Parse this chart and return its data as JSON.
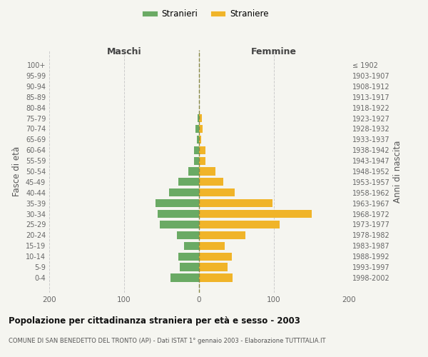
{
  "age_groups": [
    "100+",
    "95-99",
    "90-94",
    "85-89",
    "80-84",
    "75-79",
    "70-74",
    "65-69",
    "60-64",
    "55-59",
    "50-54",
    "45-49",
    "40-44",
    "35-39",
    "30-34",
    "25-29",
    "20-24",
    "15-19",
    "10-14",
    "5-9",
    "0-4"
  ],
  "birth_years": [
    "≤ 1902",
    "1903-1907",
    "1908-1912",
    "1913-1917",
    "1918-1922",
    "1923-1927",
    "1928-1932",
    "1933-1937",
    "1938-1942",
    "1943-1947",
    "1948-1952",
    "1953-1957",
    "1958-1962",
    "1963-1967",
    "1968-1972",
    "1973-1977",
    "1978-1982",
    "1983-1987",
    "1988-1992",
    "1993-1997",
    "1998-2002"
  ],
  "maschi": [
    0,
    0,
    0,
    0,
    0,
    2,
    5,
    3,
    7,
    7,
    14,
    28,
    40,
    58,
    55,
    52,
    30,
    20,
    28,
    26,
    38
  ],
  "femmine": [
    0,
    0,
    0,
    0,
    0,
    4,
    5,
    3,
    9,
    9,
    22,
    32,
    48,
    98,
    150,
    108,
    62,
    34,
    44,
    38,
    45
  ],
  "color_maschi": "#6aaa64",
  "color_femmine": "#f0b429",
  "background_color": "#f5f5f0",
  "title": "Popolazione per cittadinanza straniera per età e sesso - 2003",
  "subtitle": "COMUNE DI SAN BENEDETTO DEL TRONTO (AP) - Dati ISTAT 1° gennaio 2003 - Elaborazione TUTTITALIA.IT",
  "xlabel_left": "Maschi",
  "xlabel_right": "Femmine",
  "ylabel_left": "Fasce di età",
  "ylabel_right": "Anni di nascita",
  "legend_maschi": "Stranieri",
  "legend_femmine": "Straniere",
  "xlim": 200,
  "grid_color": "#cccccc",
  "dashed_line_color": "#aaaaaa"
}
